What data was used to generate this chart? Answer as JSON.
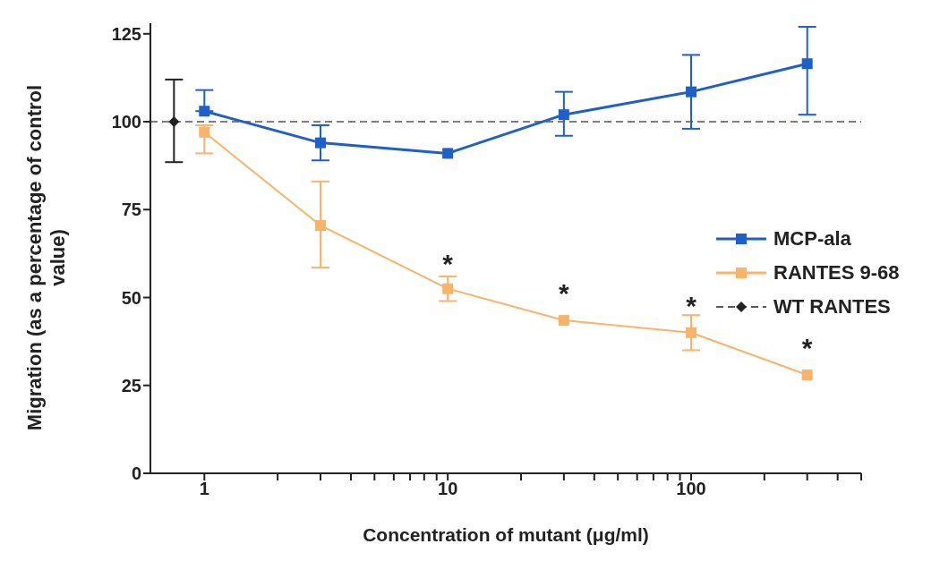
{
  "chart_data": {
    "type": "line",
    "xlabel": "Concentration of mutant  (μg/ml)",
    "ylabel": "Migration (as a percentage of control value)",
    "log": "x",
    "xlim": [
      0.6,
      500
    ],
    "xticks": [
      1,
      {
        "value": 2,
        "label": null
      },
      {
        "value": 3,
        "label": null
      },
      {
        "value": 4,
        "label": null
      },
      {
        "value": 5,
        "label": null
      },
      {
        "value": 6,
        "label": null
      },
      {
        "value": 7,
        "label": null
      },
      {
        "value": 8,
        "label": null
      },
      {
        "value": 9,
        "label": null
      },
      10,
      {
        "value": 20,
        "label": null
      },
      {
        "value": 30,
        "label": null
      },
      {
        "value": 40,
        "label": null
      },
      {
        "value": 50,
        "label": null
      },
      {
        "value": 60,
        "label": null
      },
      {
        "value": 70,
        "label": null
      },
      {
        "value": 80,
        "label": null
      },
      {
        "value": 90,
        "label": null
      },
      100,
      {
        "value": 200,
        "label": null
      },
      {
        "value": 300,
        "label": null
      },
      {
        "value": 400,
        "label": null
      },
      {
        "value": 500,
        "label": null
      }
    ],
    "ylim": [
      0,
      128
    ],
    "yticks": [
      0,
      25,
      50,
      75,
      100,
      125
    ],
    "grid": false,
    "legend": "right",
    "series": [
      {
        "name": "MCP-ala",
        "color": "#1f5fc8",
        "marker": "square",
        "line_style": "solid",
        "x": [
          1,
          3,
          10,
          30,
          100,
          300
        ],
        "values": [
          103,
          94,
          91,
          102,
          108.5,
          116.5
        ],
        "errors": [
          [
            103,
            109
          ],
          [
            89,
            99
          ],
          null,
          [
            96,
            108.5
          ],
          [
            98,
            119
          ],
          [
            102,
            127
          ]
        ]
      },
      {
        "name": "RANTES 9-68",
        "color": "#f9b36b",
        "marker": "square",
        "line_style": "solid",
        "x": [
          1,
          3,
          10,
          30,
          100,
          300
        ],
        "values": [
          97,
          70.5,
          52.5,
          43.5,
          40,
          28
        ],
        "errors": [
          [
            91,
            99
          ],
          [
            58.5,
            83
          ],
          [
            49,
            56
          ],
          null,
          [
            35,
            45
          ],
          null
        ]
      },
      {
        "name": "WT RANTES",
        "color": "#222222",
        "marker": "diamond",
        "line_style": "dashed",
        "x": [
          0.75
        ],
        "values": [
          100
        ],
        "errors": [
          [
            88.5,
            112
          ]
        ]
      }
    ],
    "ref_lines": [
      {
        "axis": "y",
        "value": 100,
        "color": "#555555",
        "line_style": "dashed"
      }
    ],
    "annotations": [
      {
        "text": "*",
        "x": 10,
        "y": 52.5
      },
      {
        "text": "*",
        "x": 30,
        "y": 43.5
      },
      {
        "text": "*",
        "x": 100,
        "y": 40
      },
      {
        "text": "*",
        "x": 300,
        "y": 28
      }
    ]
  }
}
